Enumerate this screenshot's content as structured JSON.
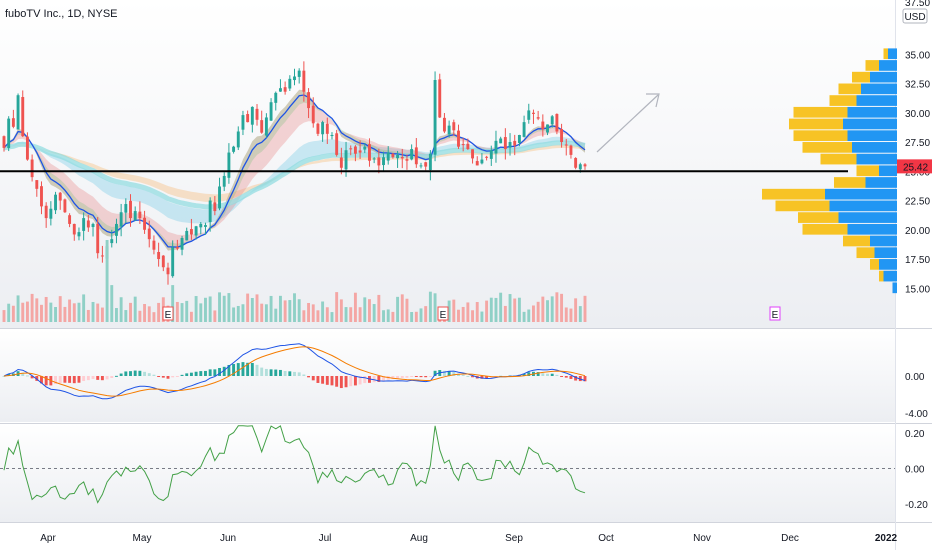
{
  "header": {
    "symbol_title": "fuboTV Inc., 1D, NYSE",
    "currency": "USD"
  },
  "price_axis": {
    "ticks": [
      "37.50",
      "35.00",
      "32.50",
      "30.00",
      "27.50",
      "25.00",
      "22.50",
      "20.00",
      "17.50",
      "15.00"
    ]
  },
  "last_price": {
    "value": 25.42,
    "label": "25.42",
    "color": "#f23645"
  },
  "support_level": 25.0,
  "macd_axis": {
    "ticks": [
      "0.00",
      "-4.00"
    ]
  },
  "osc_axis": {
    "ticks": [
      "0.20",
      "0.00",
      "-0.20"
    ]
  },
  "time_axis": {
    "labels": [
      "Apr",
      "May",
      "Jun",
      "Jul",
      "Aug",
      "Sep",
      "Oct",
      "Nov",
      "Dec",
      "2022"
    ]
  },
  "earnings_marker": {
    "label": "E"
  },
  "colors": {
    "up": "#26a69a",
    "down": "#ef5350",
    "vp_up": "#2196f3",
    "vp_down": "#f7c325",
    "ma": "#1e53e5",
    "signal": "#f57c00",
    "osc": "#43a047"
  },
  "chart_data": [
    {
      "type": "candlestick",
      "name": "price",
      "x_range": [
        "2021-03-15",
        "2022-01-05"
      ],
      "ylim": [
        14.0,
        37.5
      ],
      "close": [
        27.0,
        29.5,
        28.8,
        31.5,
        28.0,
        26.0,
        24.5,
        23.5,
        22.0,
        21.0,
        21.8,
        23.0,
        22.5,
        21.5,
        20.5,
        19.6,
        19.8,
        21.0,
        20.2,
        20.5,
        18.0,
        17.8,
        18.6,
        19.2,
        20.5,
        21.5,
        22.2,
        21.0,
        21.6,
        21.0,
        20.0,
        19.2,
        18.3,
        17.5,
        16.8,
        16.2,
        18.5,
        18.4,
        19.3,
        19.9,
        19.6,
        20.3,
        20.5,
        20.4,
        22.5,
        21.6,
        23.7,
        24.6,
        26.6,
        27.1,
        28.4,
        29.8,
        29.2,
        30.5,
        29.4,
        28.3,
        29.6,
        30.9,
        31.7,
        32.1,
        31.8,
        32.9,
        33.1,
        33.6,
        31.8,
        30.4,
        29.1,
        28.2,
        29.2,
        28.2,
        28.1,
        26.4,
        25.3,
        26.8,
        26.9,
        26.5,
        26.6,
        27.1,
        25.9,
        26.1,
        25.5,
        26.2,
        26.6,
        26.2,
        26.4,
        26.1,
        25.9,
        26.9,
        25.6,
        25.5,
        25.4,
        26.5,
        32.8,
        29.6,
        28.4,
        28.9,
        28.5,
        27.1,
        27.3,
        26.9,
        26.1,
        25.5,
        26.0,
        26.2,
        26.8,
        27.6,
        27.8,
        26.9,
        27.5,
        27.2,
        28.1,
        29.2,
        30.2,
        29.9,
        29.5,
        28.6,
        29.0,
        29.7,
        28.4,
        27.5,
        27.2,
        26.4,
        25.3,
        25.6,
        25.42
      ],
      "volume_bars": 126,
      "volume_max_index": 22
    },
    {
      "type": "volume_profile",
      "price_levels": [
        15.0,
        16.0,
        17.0,
        18.0,
        19.0,
        20.0,
        21.0,
        22.0,
        23.0,
        24.0,
        25.0,
        26.0,
        27.0,
        28.0,
        29.0,
        30.0,
        31.0,
        32.0,
        33.0,
        34.0,
        35.0
      ],
      "up_volume": [
        0.05,
        0.15,
        0.2,
        0.25,
        0.3,
        0.55,
        0.65,
        0.75,
        0.8,
        0.35,
        0.2,
        0.45,
        0.5,
        0.55,
        0.6,
        0.55,
        0.45,
        0.4,
        0.3,
        0.2,
        0.1
      ],
      "down_volume": [
        0.0,
        0.05,
        0.1,
        0.2,
        0.3,
        0.5,
        0.45,
        0.6,
        0.7,
        0.35,
        0.25,
        0.4,
        0.55,
        0.6,
        0.6,
        0.6,
        0.3,
        0.25,
        0.2,
        0.15,
        0.05
      ]
    },
    {
      "type": "macd",
      "ylim": [
        -5.0,
        5.0
      ],
      "ticks": [
        0.0,
        -4.0
      ]
    },
    {
      "type": "line",
      "name": "oscillator",
      "ylim": [
        -0.3,
        0.25
      ],
      "ticks": [
        0.2,
        0.0,
        -0.2
      ]
    }
  ]
}
